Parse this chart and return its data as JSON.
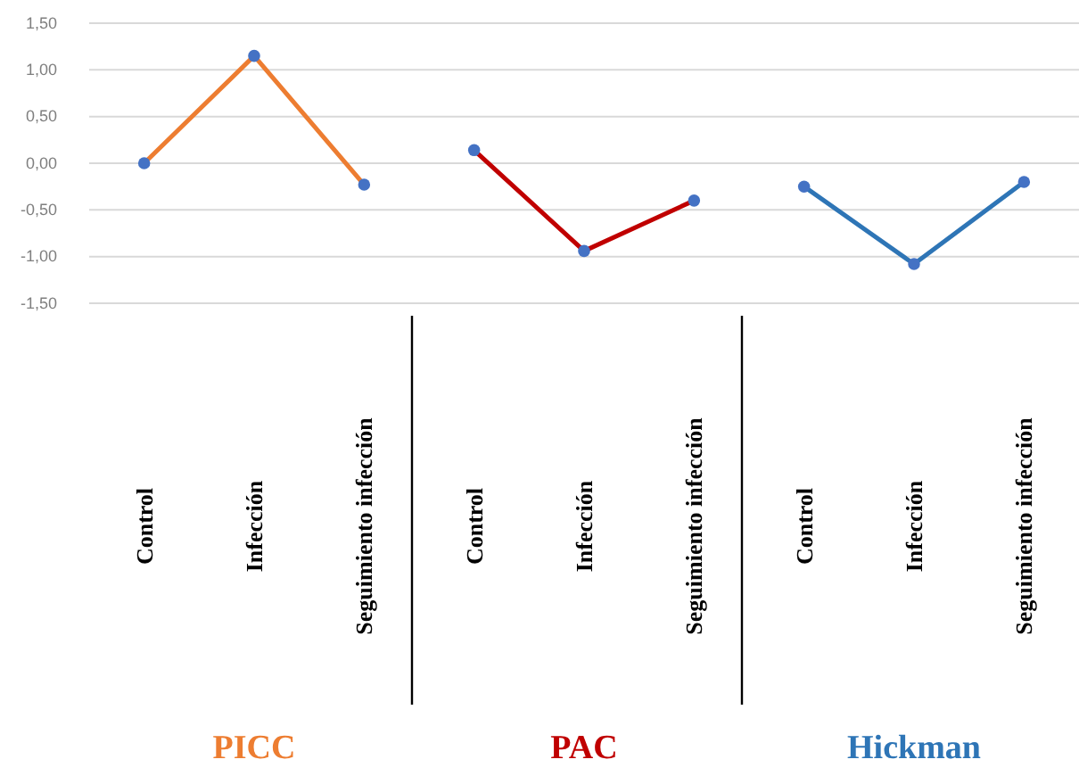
{
  "chart_data": {
    "type": "line",
    "categories": [
      "Control",
      "Infección",
      "Seguimiento infección",
      "Control",
      "Infección",
      "Seguimiento infección",
      "Control",
      "Infección",
      "Seguimiento infección"
    ],
    "series": [
      {
        "name": "PICC",
        "color": "#ed7d31",
        "values": [
          0.0,
          1.15,
          -0.23,
          null,
          null,
          null,
          null,
          null,
          null
        ]
      },
      {
        "name": "PAC",
        "color": "#c00000",
        "values": [
          null,
          null,
          null,
          0.14,
          -0.94,
          -0.4,
          null,
          null,
          null
        ]
      },
      {
        "name": "Hickman",
        "color": "#2e75b6",
        "values": [
          null,
          null,
          null,
          null,
          null,
          null,
          -0.25,
          -1.08,
          -0.2
        ]
      }
    ],
    "ylim": [
      -1.5,
      1.5
    ],
    "yticks": [
      {
        "value": -1.5,
        "label": "-1,50"
      },
      {
        "value": -1.0,
        "label": "-1,00"
      },
      {
        "value": -0.5,
        "label": "-0,50"
      },
      {
        "value": 0,
        "label": "0,00"
      },
      {
        "value": 0.5,
        "label": "0,50"
      },
      {
        "value": 1.0,
        "label": "1,00"
      },
      {
        "value": 1.5,
        "label": "1,50"
      }
    ],
    "grid": "y",
    "marker": "circle",
    "legend": "bottom"
  }
}
